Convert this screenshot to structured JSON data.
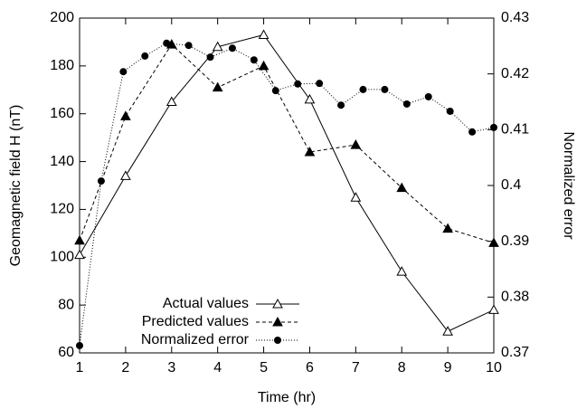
{
  "chart_data": {
    "type": "line",
    "x_label": "Time (hr)",
    "y_label": "Geomagnetic field H (nT)",
    "y2_label": "Normalized error",
    "xlim": [
      1,
      10
    ],
    "xticks": [
      1,
      2,
      3,
      4,
      5,
      6,
      7,
      8,
      9,
      10
    ],
    "ylim": [
      60,
      200
    ],
    "yticks": [
      60,
      80,
      100,
      120,
      140,
      160,
      180,
      200
    ],
    "y2lim": [
      0.37,
      0.43
    ],
    "y2ticks": [
      0.37,
      0.38,
      0.39,
      0.4,
      0.41,
      0.42,
      0.43
    ],
    "legend": "center-left",
    "series": [
      {
        "name": "Actual values",
        "color": "#000000",
        "line_style": "solid",
        "marker": "open-triangle",
        "x": [
          1,
          2,
          3,
          4,
          5,
          6,
          7,
          8,
          9,
          10
        ],
        "values": [
          101,
          134,
          165,
          188,
          193,
          166,
          125,
          94,
          69,
          78
        ]
      },
      {
        "name": "Predicted values",
        "color": "#000000",
        "line_style": "dashed",
        "marker": "filled-triangle",
        "x": [
          1,
          2,
          3,
          4,
          5,
          6,
          7,
          8,
          9,
          10
        ],
        "values": [
          107,
          159,
          189,
          171,
          180,
          144,
          147,
          129,
          112,
          106
        ]
      },
      {
        "name": "Normalized error",
        "color": "#000000",
        "line_style": "dotted",
        "marker": "filled-circle",
        "axis": "y2",
        "x": [
          1,
          1.47,
          1.95,
          2.42,
          2.89,
          3.37,
          3.84,
          4.32,
          4.79,
          5.26,
          5.74,
          6.21,
          6.68,
          7.16,
          7.63,
          8.11,
          8.58,
          9.05,
          9.53,
          10
        ],
        "values": [
          0.3713,
          0.4008,
          0.4204,
          0.4232,
          0.4255,
          0.4251,
          0.423,
          0.4246,
          0.4225,
          0.417,
          0.4182,
          0.4183,
          0.4144,
          0.4172,
          0.4172,
          0.4146,
          0.4159,
          0.4133,
          0.4096,
          0.4104
        ]
      }
    ]
  }
}
